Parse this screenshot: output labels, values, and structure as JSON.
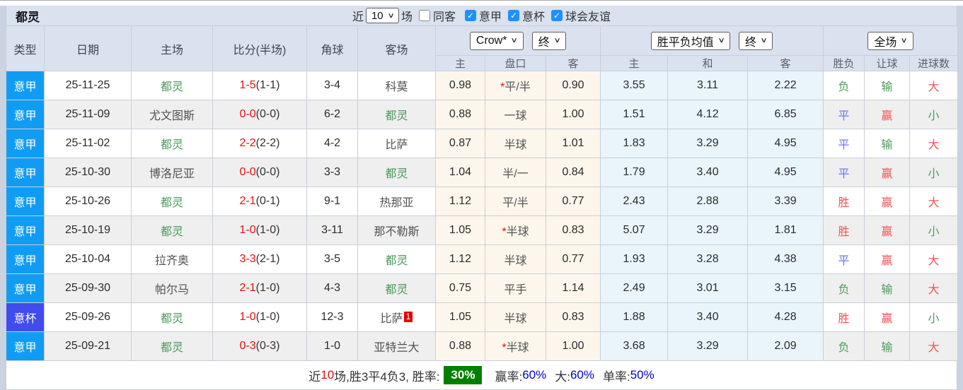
{
  "title": "都灵",
  "filters": {
    "near_label": "近",
    "games_value": "10",
    "games_label": "场",
    "same_away_label": "同客",
    "same_away_checked": false,
    "leagues": [
      {
        "label": "意甲",
        "checked": true
      },
      {
        "label": "意杯",
        "checked": true
      },
      {
        "label": "球会友谊",
        "checked": true
      }
    ],
    "check_mark": "✓",
    "accent_color": "#1e90ff"
  },
  "header": {
    "cols": [
      "类型",
      "日期",
      "主场",
      "比分(半场)",
      "角球",
      "客场"
    ],
    "book_select": "Crow*",
    "book_final_select": "终",
    "avg_select": "胜平负均值",
    "avg_final_select": "终",
    "scope_select": "全场",
    "sub": [
      "主",
      "盘口",
      "客",
      "主",
      "和",
      "客",
      "胜负",
      "让球",
      "进球数"
    ]
  },
  "league_colors": {
    "serie": "#119cf4",
    "cup": "#414bee"
  },
  "result_colors": {
    "win": "#f15353",
    "draw": "#7070fa",
    "lose": "#4d9c5e"
  },
  "rows": [
    {
      "league": "意甲",
      "date": "25-11-25",
      "home": "都灵",
      "home_torino": true,
      "ft": "1-5",
      "ht": "(1-1)",
      "corners": "3-4",
      "away": "科莫",
      "away_torino": false,
      "away_sup": "",
      "o_home": "0.98",
      "hcp_star": "*",
      "hcp": "平/半",
      "o_away": "0.90",
      "m_home": "3.55",
      "m_draw": "3.11",
      "m_away": "2.22",
      "res": "负",
      "hres": "输",
      "goals": "大"
    },
    {
      "league": "意甲",
      "date": "25-11-09",
      "home": "尤文图斯",
      "home_torino": false,
      "ft": "0-0",
      "ht": "(0-0)",
      "corners": "6-2",
      "away": "都灵",
      "away_torino": true,
      "away_sup": "",
      "o_home": "0.88",
      "hcp_star": "",
      "hcp": "一球",
      "o_away": "1.00",
      "m_home": "1.51",
      "m_draw": "4.12",
      "m_away": "6.85",
      "res": "平",
      "hres": "赢",
      "goals": "小"
    },
    {
      "league": "意甲",
      "date": "25-11-02",
      "home": "都灵",
      "home_torino": true,
      "ft": "2-2",
      "ht": "(2-2)",
      "corners": "4-2",
      "away": "比萨",
      "away_torino": false,
      "away_sup": "",
      "o_home": "0.87",
      "hcp_star": "",
      "hcp": "半球",
      "o_away": "1.01",
      "m_home": "1.83",
      "m_draw": "3.29",
      "m_away": "4.95",
      "res": "平",
      "hres": "输",
      "goals": "大"
    },
    {
      "league": "意甲",
      "date": "25-10-30",
      "home": "博洛尼亚",
      "home_torino": false,
      "ft": "0-0",
      "ht": "(0-0)",
      "corners": "3-3",
      "away": "都灵",
      "away_torino": true,
      "away_sup": "",
      "o_home": "1.04",
      "hcp_star": "",
      "hcp": "半/一",
      "o_away": "0.84",
      "m_home": "1.79",
      "m_draw": "3.40",
      "m_away": "4.95",
      "res": "平",
      "hres": "赢",
      "goals": "小"
    },
    {
      "league": "意甲",
      "date": "25-10-26",
      "home": "都灵",
      "home_torino": true,
      "ft": "2-1",
      "ht": "(0-1)",
      "corners": "9-1",
      "away": "热那亚",
      "away_torino": false,
      "away_sup": "",
      "o_home": "1.12",
      "hcp_star": "",
      "hcp": "平/半",
      "o_away": "0.77",
      "m_home": "2.43",
      "m_draw": "2.88",
      "m_away": "3.39",
      "res": "胜",
      "hres": "赢",
      "goals": "大"
    },
    {
      "league": "意甲",
      "date": "25-10-19",
      "home": "都灵",
      "home_torino": true,
      "ft": "1-0",
      "ht": "(1-0)",
      "corners": "3-11",
      "away": "那不勒斯",
      "away_torino": false,
      "away_sup": "",
      "o_home": "1.05",
      "hcp_star": "*",
      "hcp": "半球",
      "o_away": "0.83",
      "m_home": "5.07",
      "m_draw": "3.29",
      "m_away": "1.81",
      "res": "胜",
      "hres": "赢",
      "goals": "小"
    },
    {
      "league": "意甲",
      "date": "25-10-04",
      "home": "拉齐奥",
      "home_torino": false,
      "ft": "3-3",
      "ht": "(2-1)",
      "corners": "3-5",
      "away": "都灵",
      "away_torino": true,
      "away_sup": "",
      "o_home": "1.12",
      "hcp_star": "",
      "hcp": "半球",
      "o_away": "0.77",
      "m_home": "1.93",
      "m_draw": "3.28",
      "m_away": "4.38",
      "res": "平",
      "hres": "赢",
      "goals": "大"
    },
    {
      "league": "意甲",
      "date": "25-09-30",
      "home": "帕尔马",
      "home_torino": false,
      "ft": "2-1",
      "ht": "(1-0)",
      "corners": "4-3",
      "away": "都灵",
      "away_torino": true,
      "away_sup": "",
      "o_home": "0.75",
      "hcp_star": "",
      "hcp": "平手",
      "o_away": "1.14",
      "m_home": "2.49",
      "m_draw": "3.01",
      "m_away": "3.15",
      "res": "负",
      "hres": "输",
      "goals": "大"
    },
    {
      "league": "意杯",
      "date": "25-09-26",
      "home": "都灵",
      "home_torino": true,
      "ft": "1-0",
      "ht": "(1-0)",
      "corners": "12-3",
      "away": "比萨",
      "away_torino": false,
      "away_sup": "1",
      "o_home": "1.05",
      "hcp_star": "",
      "hcp": "半球",
      "o_away": "0.83",
      "m_home": "1.88",
      "m_draw": "3.40",
      "m_away": "4.28",
      "res": "胜",
      "hres": "赢",
      "goals": "小"
    },
    {
      "league": "意甲",
      "date": "25-09-21",
      "home": "都灵",
      "home_torino": true,
      "ft": "0-3",
      "ht": "(0-3)",
      "corners": "1-0",
      "away": "亚特兰大",
      "away_torino": false,
      "away_sup": "",
      "o_home": "0.88",
      "hcp_star": "*",
      "hcp": "半球",
      "o_away": "1.00",
      "m_home": "3.68",
      "m_draw": "3.29",
      "m_away": "2.09",
      "res": "负",
      "hres": "输",
      "goals": "大"
    }
  ],
  "footer": {
    "near": "近",
    "count": "10",
    "summary": "场,胜3平4负3, 胜率:",
    "win_rate": "30%",
    "win_rate_bg": "#008000",
    "label_win": "赢率:",
    "pct_win": "60%",
    "label_big": "大:",
    "pct_big": "60%",
    "label_single": "单率:",
    "pct_single": "50%"
  }
}
